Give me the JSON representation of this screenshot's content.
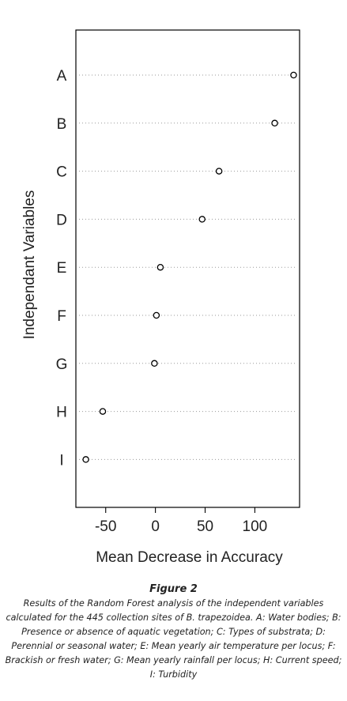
{
  "chart_data": {
    "type": "scatter",
    "categories": [
      "A",
      "B",
      "C",
      "D",
      "E",
      "F",
      "G",
      "H",
      "I"
    ],
    "values": [
      139,
      120,
      64,
      47,
      5,
      1,
      -1,
      -53,
      -70
    ],
    "xlabel": "Mean Decrease in Accuracy",
    "ylabel": "Independant Variables",
    "xticks": [
      -50,
      0,
      50,
      100
    ],
    "xlim": [
      -80,
      145
    ],
    "grid": "dotted horizontal"
  },
  "caption": {
    "title": "Figure 2",
    "text": "Results of the Random Forest analysis of the independent variables calculated for the 445 collection sites of B. trapezoidea.  A: Water bodies; B: Presence or absence of aquatic vegetation; C: Types of substrata; D: Perennial or seasonal water; E: Mean yearly air temperature per locus; F: Brackish or fresh water; G: Mean yearly rainfall per locus; H: Current speed; I: Turbidity"
  }
}
